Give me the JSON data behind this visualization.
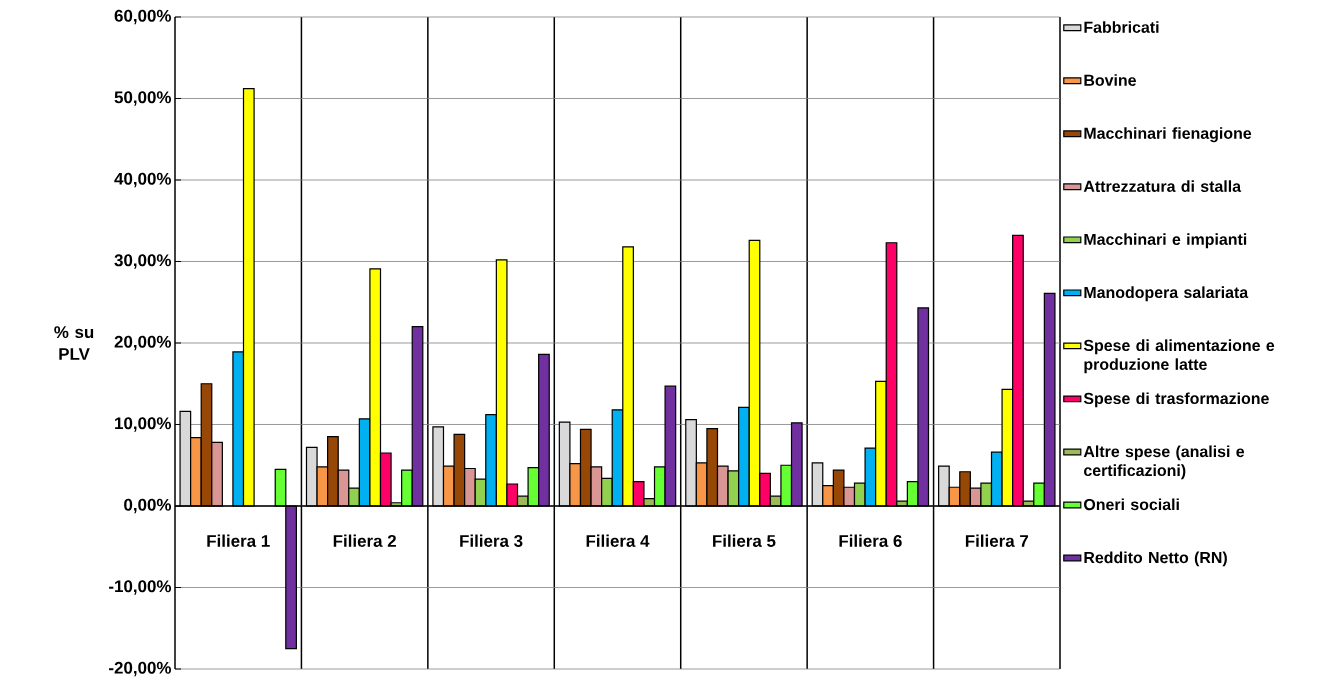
{
  "chart_data": {
    "type": "bar",
    "ylabel": "% su PLV",
    "categories": [
      "Filiera 1",
      "Filiera 2",
      "Filiera 3",
      "Filiera 4",
      "Filiera 5",
      "Filiera 6",
      "Filiera 7"
    ],
    "series": [
      {
        "name": "Fabbricati",
        "color": "#d9d9d9",
        "values": [
          11.6,
          7.2,
          9.7,
          10.3,
          10.6,
          5.3,
          4.9
        ]
      },
      {
        "name": "Bovine",
        "color": "#f79646",
        "values": [
          8.4,
          4.8,
          4.9,
          5.2,
          5.3,
          2.5,
          2.3
        ]
      },
      {
        "name": "Macchinari fienagione",
        "color": "#974706",
        "values": [
          15.0,
          8.5,
          8.8,
          9.4,
          9.5,
          4.4,
          4.2
        ]
      },
      {
        "name": "Attrezzatura di stalla",
        "color": "#da9694",
        "values": [
          7.8,
          4.4,
          4.6,
          4.8,
          4.9,
          2.3,
          2.2
        ]
      },
      {
        "name": "Macchinari e impianti",
        "color": "#92d050",
        "values": [
          null,
          2.2,
          3.3,
          3.4,
          4.3,
          2.8,
          2.8
        ]
      },
      {
        "name": "Manodopera salariata",
        "color": "#00b0f0",
        "values": [
          18.9,
          10.7,
          11.2,
          11.8,
          12.1,
          7.1,
          6.6
        ]
      },
      {
        "name": "Spese di alimentazione e produzione latte",
        "color": "#ffff00",
        "values": [
          51.2,
          29.1,
          30.2,
          31.8,
          32.6,
          15.3,
          14.3
        ]
      },
      {
        "name": "Spese di trasformazione",
        "color": "#ff0066",
        "values": [
          null,
          6.5,
          2.7,
          3.0,
          4.0,
          32.3,
          33.2
        ]
      },
      {
        "name": "Altre spese (analisi e certificazioni)",
        "color": "#9bbb59",
        "values": [
          null,
          0.4,
          1.2,
          0.9,
          1.2,
          0.6,
          0.6
        ]
      },
      {
        "name": "Oneri sociali",
        "color": "#66ff33",
        "values": [
          4.5,
          4.4,
          4.7,
          4.8,
          5.0,
          3.0,
          2.8
        ]
      },
      {
        "name": "Reddito Netto (RN)",
        "color": "#7030a0",
        "values": [
          -17.5,
          22.0,
          18.6,
          14.7,
          10.2,
          24.3,
          26.1
        ]
      }
    ],
    "ylim": [
      -20,
      60
    ],
    "yticks": [
      {
        "value": -20,
        "label": "-20,00%"
      },
      {
        "value": -10,
        "label": "-10,00%"
      },
      {
        "value": 0,
        "label": "0,00%"
      },
      {
        "value": 10,
        "label": "10,00%"
      },
      {
        "value": 20,
        "label": "20,00%"
      },
      {
        "value": 30,
        "label": "30,00%"
      },
      {
        "value": 40,
        "label": "40,00%"
      },
      {
        "value": 50,
        "label": "50,00%"
      },
      {
        "value": 60,
        "label": "60,00%"
      }
    ],
    "grid": "y",
    "legend": "right"
  }
}
